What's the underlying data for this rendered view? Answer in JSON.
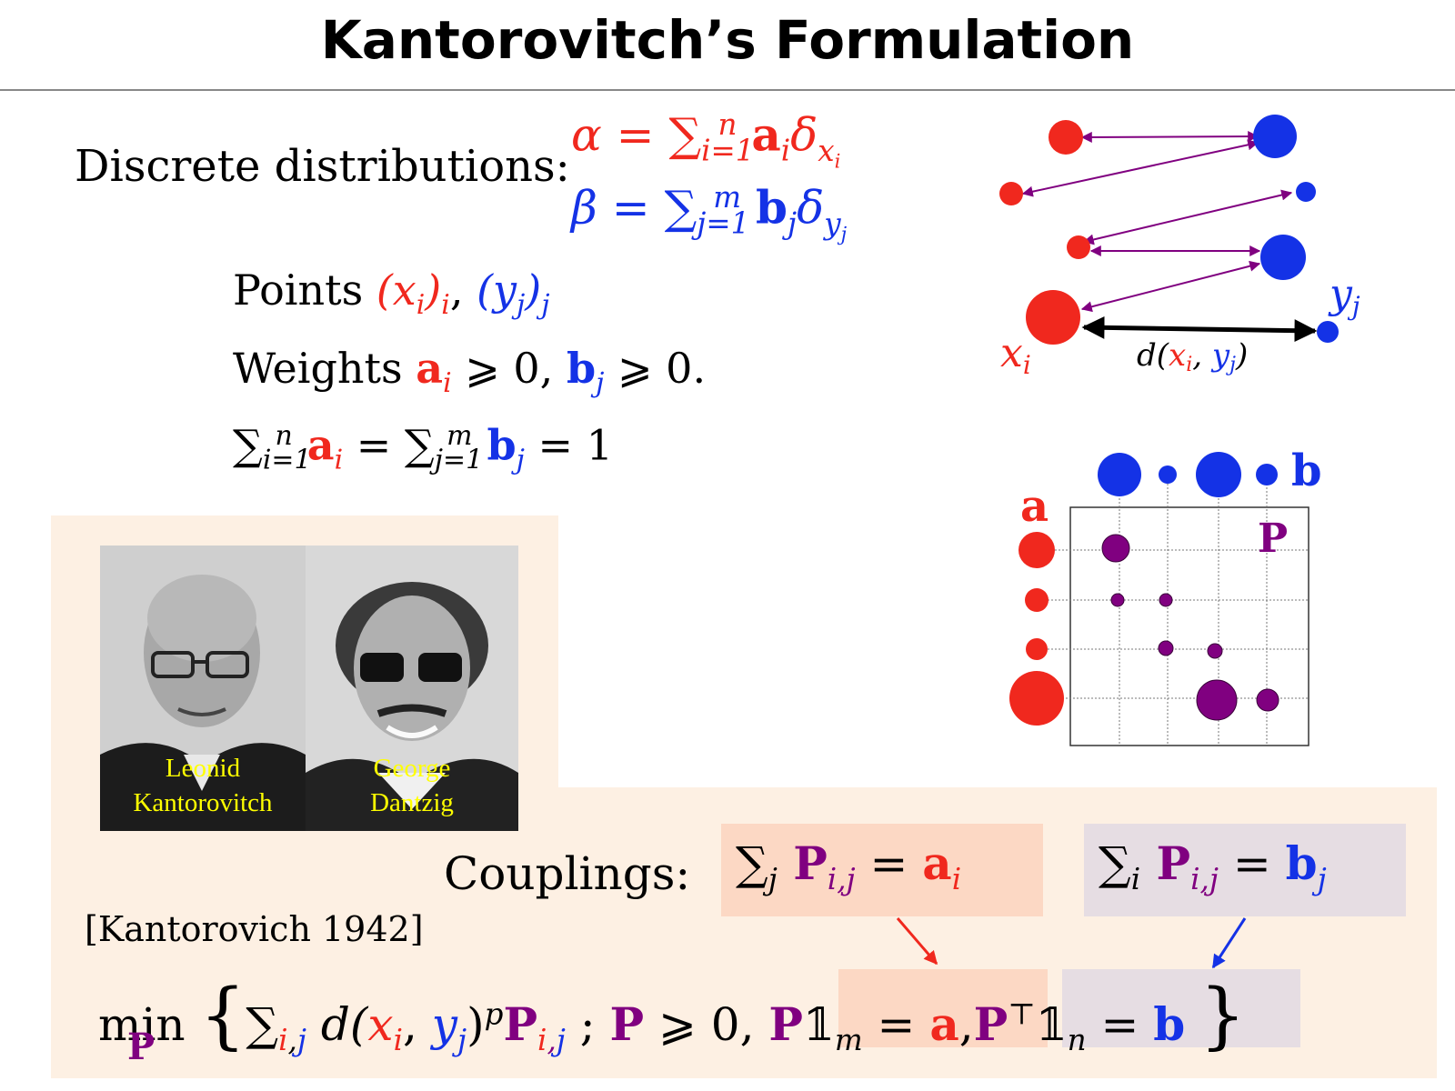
{
  "title": "Kantorovitch’s Formulation",
  "discrete_label": "Discrete distributions:",
  "alpha_formula": {
    "lhs": "α = ",
    "sum": "∑",
    "sub": "i=1",
    "sup": "n",
    "term": "a",
    "term_sub": "i",
    "delta": "δ",
    "delta_sub": "x",
    "delta_subsub": "i"
  },
  "beta_formula": {
    "lhs": "β = ",
    "sum": "∑",
    "sub": "j=1",
    "sup": "m",
    "term": "b",
    "term_sub": "j",
    "delta": "δ",
    "delta_sub": "y",
    "delta_subsub": "j"
  },
  "points_line": {
    "label": "Points ",
    "x": "(x",
    "x_sub": "i",
    "x_close": ")",
    "x_sub2": "i",
    "sep": ", ",
    "y": "(y",
    "y_sub": "j",
    "y_close": ")",
    "y_sub2": "j"
  },
  "weights_line": {
    "label": "Weights ",
    "a": "a",
    "a_sub": "i",
    "geq1": " ⩾ 0, ",
    "b": "b",
    "b_sub": "j",
    "geq2": " ⩾ 0."
  },
  "sum_line": {
    "sum1": "∑",
    "sub1": "i=1",
    "sup1": "n",
    "a": " a",
    "a_sub": "i",
    "eq": " = ",
    "sum2": "∑",
    "sub2": "j=1",
    "sup2": "m",
    "b": " b",
    "b_sub": "j",
    "rhs": " = 1"
  },
  "diagram_top": {
    "x_label": "x",
    "x_label_sub": "i",
    "y_label": "y",
    "y_label_sub": "j",
    "d_label": "d(",
    "d_x": "x",
    "d_x_sub": "i",
    "d_comma": ", ",
    "d_y": "y",
    "d_y_sub": "j",
    "d_close": ")"
  },
  "diagram_matrix": {
    "a_label": "a",
    "b_label": "b",
    "P_label": "P"
  },
  "photos": [
    {
      "caption_line1": "Leonid",
      "caption_line2": "Kantorovitch"
    },
    {
      "caption_line1": "George",
      "caption_line2": "Dantzig"
    }
  ],
  "couplings_label": "Couplings:",
  "constraint1": {
    "sum": "∑",
    "sum_sub": "j",
    "P": " P",
    "P_sub": "i,j",
    "eq": " = ",
    "a": "a",
    "a_sub": "i"
  },
  "constraint2": {
    "sum": "∑",
    "sum_sub": "i",
    "P": " P",
    "P_sub": "i,j",
    "eq": " = ",
    "b": "b",
    "b_sub": "j"
  },
  "reference": "[Kantorovich 1942]",
  "objective": {
    "min": "min",
    "min_sub": "P",
    "open": "{",
    "sum": "∑",
    "sum_sub_i": "i",
    "sum_sub_comma": ",",
    "sum_sub_j": "j",
    "d": " d(",
    "x": "x",
    "x_sub": "i",
    "comma": ", ",
    "y": "y",
    "y_sub": "j",
    "close": ")",
    "pow": "p",
    "P": "P",
    "P_sub_i": "i",
    "P_sub_comma": ",",
    "P_sub_j": "j",
    "semi": " ; ",
    "P2": "P",
    "geq": " ⩾ 0, ",
    "P3": "P",
    "one": "𝟙",
    "one_sub_m": "m",
    "eq_a": " = ",
    "a": "a",
    "comma2": ",",
    "P4": "P",
    "top": "⊤",
    "one2": "𝟙",
    "one_sub_n": "n",
    "eq_b": " = ",
    "b": "b",
    "close_brace": "}"
  },
  "colors": {
    "red": "#f0281e",
    "blue": "#1432e6",
    "purple": "#800080",
    "peach": "#fdf0e3",
    "caption": "#ffff00"
  }
}
